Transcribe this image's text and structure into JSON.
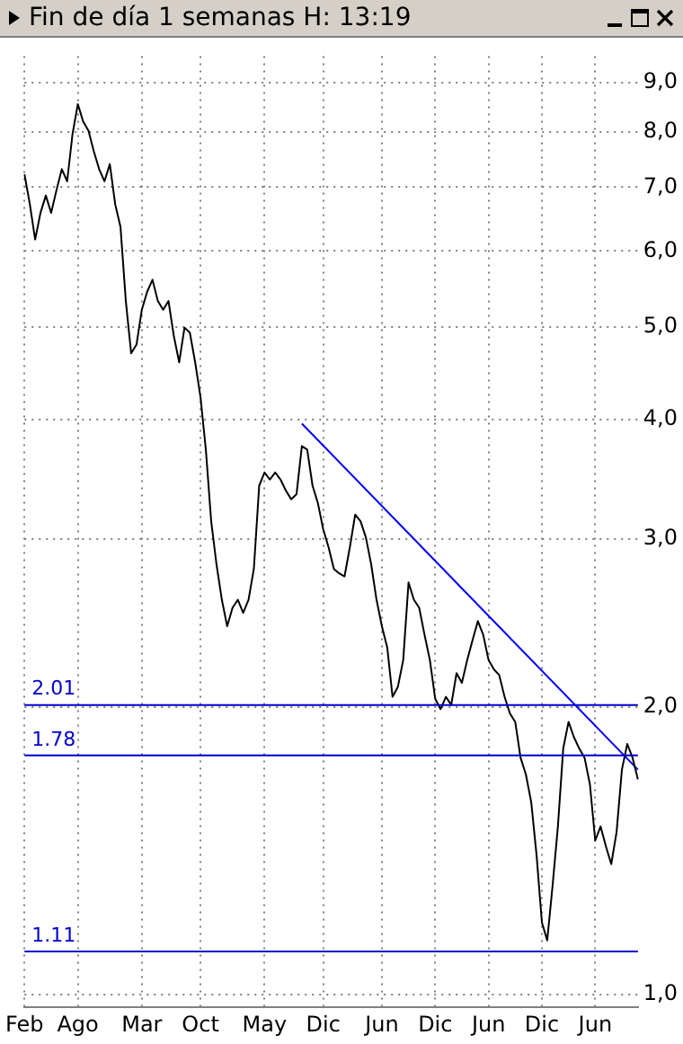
{
  "chart_data": {
    "type": "line",
    "title": "Fin de día 1 semanas H: 13:19",
    "categories": [
      "Feb",
      null,
      null,
      null,
      null,
      null,
      null,
      null,
      null,
      null,
      "Ago",
      null,
      null,
      null,
      null,
      null,
      null,
      null,
      null,
      null,
      null,
      null,
      "Mar",
      null,
      null,
      null,
      null,
      null,
      null,
      null,
      null,
      null,
      null,
      "Oct",
      null,
      null,
      null,
      null,
      null,
      null,
      null,
      null,
      null,
      null,
      null,
      "May",
      null,
      null,
      null,
      null,
      null,
      null,
      null,
      null,
      null,
      null,
      "Dic",
      null,
      null,
      null,
      null,
      null,
      null,
      null,
      null,
      null,
      null,
      "Jun",
      null,
      null,
      null,
      null,
      null,
      null,
      null,
      null,
      null,
      "Dic",
      null,
      null,
      null,
      null,
      null,
      null,
      null,
      null,
      null,
      "Jun",
      null,
      null,
      null,
      null,
      null,
      null,
      null,
      null,
      null,
      "Dic",
      null,
      null,
      null,
      null,
      null,
      null,
      null,
      null,
      null,
      "Jun",
      null,
      null,
      null,
      null,
      null,
      null,
      null,
      null
    ],
    "series": [
      {
        "color": "#000000",
        "values": [
          7.22,
          6.72,
          6.17,
          6.58,
          6.86,
          6.58,
          6.95,
          7.31,
          7.1,
          7.95,
          8.55,
          8.2,
          8.02,
          7.63,
          7.31,
          7.1,
          7.4,
          6.72,
          6.36,
          5.32,
          4.69,
          4.79,
          5.21,
          5.44,
          5.6,
          5.32,
          5.21,
          5.32,
          4.89,
          4.59,
          4.99,
          4.93,
          4.59,
          4.22,
          3.72,
          3.13,
          2.82,
          2.59,
          2.43,
          2.54,
          2.59,
          2.51,
          2.59,
          2.79,
          3.41,
          3.52,
          3.46,
          3.52,
          3.46,
          3.37,
          3.3,
          3.34,
          3.75,
          3.72,
          3.41,
          3.27,
          3.07,
          2.94,
          2.79,
          2.76,
          2.74,
          2.94,
          3.18,
          3.13,
          3.01,
          2.82,
          2.59,
          2.43,
          2.31,
          2.05,
          2.1,
          2.24,
          2.7,
          2.59,
          2.54,
          2.38,
          2.24,
          2.04,
          1.99,
          2.05,
          2.01,
          2.17,
          2.12,
          2.24,
          2.35,
          2.46,
          2.38,
          2.24,
          2.19,
          2.16,
          2.05,
          1.97,
          1.93,
          1.77,
          1.7,
          1.59,
          1.4,
          1.19,
          1.14,
          1.3,
          1.5,
          1.81,
          1.93,
          1.86,
          1.81,
          1.77,
          1.66,
          1.45,
          1.5,
          1.43,
          1.37,
          1.48,
          1.72,
          1.83,
          1.77,
          1.68
        ]
      },
      {
        "type": "line",
        "color": "#0000ff",
        "values": [
          null,
          null,
          null,
          null,
          null,
          null,
          null,
          null,
          null,
          null,
          null,
          null,
          null,
          null,
          null,
          null,
          null,
          null,
          null,
          null,
          null,
          null,
          null,
          null,
          null,
          null,
          null,
          null,
          null,
          null,
          null,
          null,
          null,
          null,
          null,
          null,
          null,
          null,
          null,
          null,
          null,
          null,
          null,
          null,
          null,
          null,
          null,
          null,
          null,
          null,
          null,
          null,
          3.96,
          null,
          null,
          null,
          null,
          null,
          null,
          null,
          null,
          null,
          null,
          null,
          null,
          null,
          null,
          null,
          null,
          null,
          null,
          null,
          null,
          null,
          null,
          null,
          null,
          null,
          null,
          null,
          null,
          null,
          null,
          null,
          null,
          null,
          null,
          null,
          null,
          null,
          null,
          null,
          null,
          null,
          null,
          null,
          null,
          null,
          null,
          null,
          null,
          null,
          null,
          null,
          null,
          null,
          null,
          null,
          null,
          null,
          null,
          null,
          null,
          null,
          null,
          1.72
        ]
      }
    ],
    "ylim": [
      0.97,
      9.6
    ],
    "yticks": [
      {
        "value": 1,
        "label": "1,0"
      },
      {
        "value": 2,
        "label": "2,0"
      },
      {
        "value": 3,
        "label": "3,0"
      },
      {
        "value": 4,
        "label": "4,0"
      },
      {
        "value": 5,
        "label": "5,0"
      },
      {
        "value": 6,
        "label": "6,0"
      },
      {
        "value": 7,
        "label": "7,0"
      },
      {
        "value": 8,
        "label": "8,0"
      },
      {
        "value": 9,
        "label": "9,0"
      }
    ],
    "log": "y",
    "grid": true,
    "marker": "none",
    "line_style": "solid",
    "ref_lines": [
      {
        "axis": "y",
        "value": 2.01,
        "label": "2.01",
        "color": "#0000cc"
      },
      {
        "axis": "y",
        "value": 1.78,
        "label": "1.78",
        "color": "#0000cc"
      },
      {
        "axis": "y",
        "value": 1.11,
        "label": "1.11",
        "color": "#0000cc"
      }
    ]
  }
}
